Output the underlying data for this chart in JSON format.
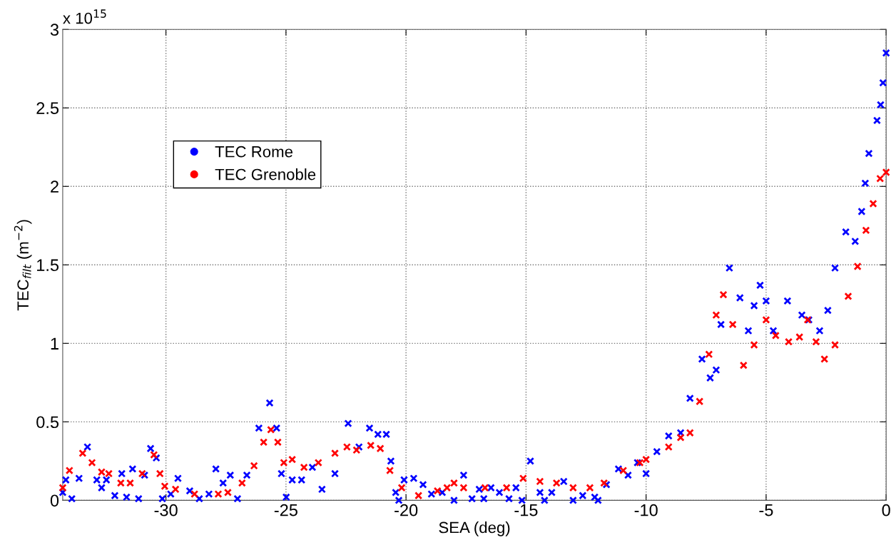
{
  "chart_data": {
    "type": "scatter",
    "xlabel": "SEA (deg)",
    "ylabel": "TEC$_{filt}$ (m$^{−2}$)",
    "annotations": [
      "x 10$^{15}$"
    ],
    "xlim": [
      -34.3,
      0
    ],
    "xticks": [
      -30,
      -25,
      -20,
      -15,
      -10,
      -5,
      0
    ],
    "ylim": [
      0,
      3
    ],
    "yticks": [
      0,
      0.5,
      1,
      1.5,
      2,
      2.5,
      3
    ],
    "grid": true,
    "legend": "top left",
    "marker": "cross",
    "series": [
      {
        "name": "TEC Rome",
        "color": "#0000ff",
        "x": [
          -34.3,
          -34.17,
          -33.92,
          -33.62,
          -33.27,
          -32.88,
          -32.68,
          -32.48,
          -32.13,
          -31.84,
          -31.64,
          -31.39,
          -31.14,
          -30.89,
          -30.64,
          -30.4,
          -30.15,
          -29.8,
          -29.5,
          -29.01,
          -28.61,
          -28.21,
          -27.92,
          -27.62,
          -27.32,
          -27.02,
          -26.63,
          -26.13,
          -25.68,
          -25.39,
          -25.19,
          -24.99,
          -24.74,
          -24.35,
          -23.9,
          -23.5,
          -22.96,
          -22.41,
          -21.96,
          -21.52,
          -21.17,
          -20.82,
          -20.63,
          -20.43,
          -20.3,
          -20.08,
          -19.68,
          -19.29,
          -18.94,
          -18.49,
          -18.0,
          -17.6,
          -17.25,
          -16.95,
          -16.76,
          -16.46,
          -16.11,
          -15.71,
          -15.42,
          -15.17,
          -14.82,
          -14.42,
          -14.23,
          -13.93,
          -13.43,
          -13.04,
          -12.64,
          -12.14,
          -12.0,
          -11.65,
          -11.15,
          -10.75,
          -10.36,
          -10.0,
          -9.55,
          -9.06,
          -8.56,
          -8.17,
          -7.67,
          -7.33,
          -7.08,
          -6.88,
          -6.53,
          -6.09,
          -5.74,
          -5.5,
          -5.25,
          -5.0,
          -4.7,
          -4.11,
          -3.51,
          -3.22,
          -2.77,
          -2.43,
          -2.13,
          -1.68,
          -1.29,
          -1.02,
          -0.87,
          -0.72,
          -0.38,
          -0.23,
          -0.13,
          0.0
        ],
        "values": [
          0.05,
          0.13,
          0.01,
          0.14,
          0.34,
          0.13,
          0.08,
          0.13,
          0.03,
          0.17,
          0.02,
          0.2,
          0.01,
          0.16,
          0.33,
          0.27,
          0.01,
          0.04,
          0.14,
          0.06,
          0.01,
          0.04,
          0.2,
          0.11,
          0.16,
          0.01,
          0.16,
          0.46,
          0.62,
          0.46,
          0.17,
          0.02,
          0.13,
          0.13,
          0.21,
          0.07,
          0.17,
          0.49,
          0.34,
          0.46,
          0.42,
          0.42,
          0.25,
          0.05,
          0.0,
          0.13,
          0.14,
          0.1,
          0.04,
          0.05,
          0.0,
          0.16,
          0.01,
          0.07,
          0.01,
          0.08,
          0.05,
          0.01,
          0.08,
          0.0,
          0.25,
          0.05,
          0.0,
          0.05,
          0.12,
          0.0,
          0.03,
          0.02,
          0.0,
          0.1,
          0.2,
          0.16,
          0.24,
          0.17,
          0.31,
          0.41,
          0.43,
          0.65,
          0.9,
          0.78,
          0.83,
          1.12,
          1.48,
          1.29,
          1.08,
          1.24,
          1.37,
          1.27,
          1.08,
          1.27,
          1.18,
          1.15,
          1.08,
          1.21,
          1.48,
          1.71,
          1.65,
          1.84,
          2.02,
          2.21,
          2.42,
          2.52,
          2.66,
          2.85
        ]
      },
      {
        "name": "TEC Grenoble",
        "color": "#ff0000",
        "x": [
          -34.3,
          -34.02,
          -33.47,
          -33.08,
          -32.68,
          -32.38,
          -31.88,
          -31.49,
          -30.99,
          -30.5,
          -30.25,
          -30.05,
          -29.6,
          -28.81,
          -27.82,
          -27.42,
          -26.83,
          -26.33,
          -25.93,
          -25.63,
          -25.34,
          -25.09,
          -24.74,
          -24.25,
          -23.65,
          -22.96,
          -22.46,
          -22.06,
          -21.47,
          -21.07,
          -20.67,
          -20.18,
          -19.48,
          -18.69,
          -18.29,
          -18.0,
          -17.6,
          -16.71,
          -15.81,
          -15.12,
          -14.42,
          -13.73,
          -13.04,
          -12.34,
          -11.75,
          -10.95,
          -10.26,
          -10.0,
          -9.06,
          -8.56,
          -8.17,
          -7.77,
          -7.38,
          -7.08,
          -6.78,
          -6.39,
          -5.94,
          -5.5,
          -5.0,
          -4.6,
          -4.06,
          -3.61,
          -3.27,
          -2.92,
          -2.57,
          -2.13,
          -1.58,
          -1.19,
          -0.84,
          -0.54,
          -0.25,
          0.0
        ],
        "values": [
          0.08,
          0.19,
          0.3,
          0.24,
          0.18,
          0.17,
          0.11,
          0.11,
          0.17,
          0.29,
          0.17,
          0.09,
          0.07,
          0.04,
          0.04,
          0.05,
          0.11,
          0.22,
          0.37,
          0.45,
          0.37,
          0.24,
          0.26,
          0.21,
          0.24,
          0.3,
          0.34,
          0.32,
          0.35,
          0.33,
          0.19,
          0.08,
          0.03,
          0.06,
          0.08,
          0.11,
          0.08,
          0.08,
          0.08,
          0.14,
          0.12,
          0.11,
          0.08,
          0.08,
          0.11,
          0.19,
          0.24,
          0.26,
          0.34,
          0.4,
          0.43,
          0.63,
          0.93,
          1.18,
          1.31,
          1.12,
          0.86,
          0.99,
          1.15,
          1.05,
          1.01,
          1.04,
          1.15,
          1.01,
          0.9,
          0.99,
          1.3,
          1.49,
          1.72,
          1.89,
          2.05,
          2.09
        ]
      }
    ]
  }
}
